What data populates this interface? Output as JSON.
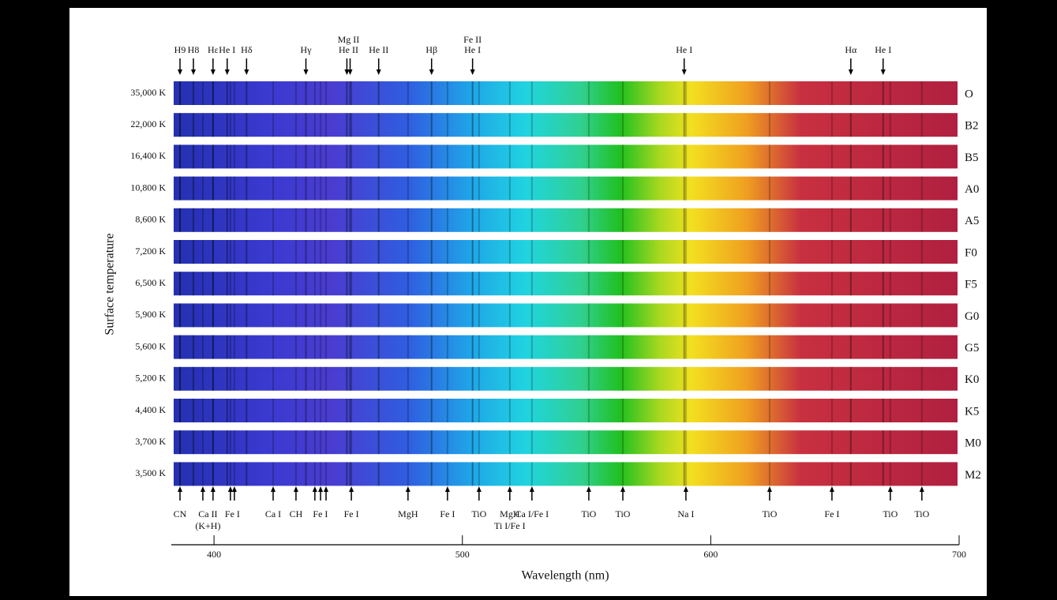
{
  "chart_data": {
    "type": "spectra",
    "y_label": "Surface temperature",
    "x_label": "Wavelength (nm)",
    "xlim": [
      382.8,
      700
    ],
    "xticks": [
      400,
      500,
      600,
      700
    ],
    "categories": [
      "35,000 K",
      "22,000 K",
      "16,400 K",
      "10,800 K",
      "8,600 K",
      "7,200 K",
      "6,500 K",
      "5,900 K",
      "5,600 K",
      "5,200 K",
      "4,400 K",
      "3,700 K",
      "3,500 K"
    ],
    "classes": [
      "O",
      "B2",
      "B5",
      "A0",
      "A5",
      "F0",
      "F5",
      "G0",
      "G5",
      "K0",
      "K5",
      "M0",
      "M2"
    ],
    "top_lines": [
      {
        "label": [
          "H9"
        ],
        "x": [
          386.3
        ]
      },
      {
        "label": [
          "H8"
        ],
        "x": [
          391.7
        ]
      },
      {
        "label": [
          "Hε"
        ],
        "x": [
          399.6
        ]
      },
      {
        "label": [
          "He I"
        ],
        "x": [
          405.3
        ]
      },
      {
        "label": [
          "Hδ"
        ],
        "x": [
          413.1
        ]
      },
      {
        "label": [
          "Hγ"
        ],
        "x": [
          437
        ]
      },
      {
        "label": [
          "Mg II",
          "He II"
        ],
        "x": [
          453.5,
          454.8
        ]
      },
      {
        "label": [
          "He II"
        ],
        "x": [
          466.3
        ]
      },
      {
        "label": [
          "Hβ"
        ],
        "x": [
          487.6
        ]
      },
      {
        "label": [
          "Fe II",
          "He I"
        ],
        "x": [
          504.1
        ]
      },
      {
        "label": [
          "He I"
        ],
        "x": [
          589.3
        ]
      },
      {
        "label": [
          "Hα"
        ],
        "x": [
          656.4
        ]
      },
      {
        "label": [
          "He I"
        ],
        "x": [
          669.4
        ]
      }
    ],
    "bottom_lines": [
      {
        "label": [
          "CN"
        ],
        "x": [
          386.3
        ]
      },
      {
        "label": [
          "Ca II",
          "(K+H)"
        ],
        "x": [
          395.5,
          399.6
        ]
      },
      {
        "label": [
          "Fe I"
        ],
        "x": [
          406.6,
          408.2
        ]
      },
      {
        "label": [
          "Ca I"
        ],
        "x": [
          423.8
        ]
      },
      {
        "label": [
          "CH"
        ],
        "x": [
          433
        ]
      },
      {
        "label": [
          "Fe I"
        ],
        "x": [
          440.6,
          442.9,
          445.1
        ]
      },
      {
        "label": [
          "Fe I"
        ],
        "x": [
          455.3
        ]
      },
      {
        "label": [
          "MgH"
        ],
        "x": [
          478.1
        ]
      },
      {
        "label": [
          "Fe I"
        ],
        "x": [
          494
        ]
      },
      {
        "label": [
          "TiO"
        ],
        "x": [
          506.7
        ]
      },
      {
        "label": [
          "MgH",
          "Ti I/Fe I"
        ],
        "x": [
          519.1
        ]
      },
      {
        "label": [
          "Ca I/Fe I"
        ],
        "x": [
          528
        ]
      },
      {
        "label": [
          "TiO"
        ],
        "x": [
          550.9
        ]
      },
      {
        "label": [
          "TiO"
        ],
        "x": [
          564.6
        ]
      },
      {
        "label": [
          "Na I"
        ],
        "x": [
          590
        ]
      },
      {
        "label": [
          "TiO"
        ],
        "x": [
          623.7
        ]
      },
      {
        "label": [
          "Fe I"
        ],
        "x": [
          648.8
        ]
      },
      {
        "label": [
          "TiO"
        ],
        "x": [
          672.3
        ]
      },
      {
        "label": [
          "TiO"
        ],
        "x": [
          685
        ]
      }
    ]
  }
}
